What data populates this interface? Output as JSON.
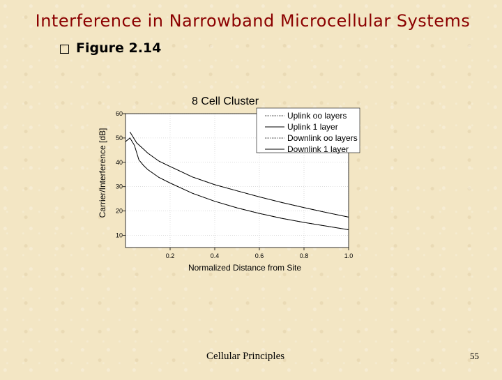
{
  "slide": {
    "title": "Interference in Narrowband Microcellular Systems",
    "bullet": "Figure 2.14",
    "footer": "Cellular Principles",
    "page_number": "55"
  },
  "chart_data": {
    "type": "line",
    "title": "8 Cell Cluster",
    "xlabel": "Normalized Distance from Site",
    "ylabel": "Carrier/Interference [dB]",
    "xlim": [
      0,
      1.0
    ],
    "ylim": [
      5,
      60
    ],
    "xticks": [
      "0.2",
      "0.4",
      "0.6",
      "0.8",
      "1.0"
    ],
    "xtick_values": [
      0.2,
      0.4,
      0.6,
      0.8,
      1.0
    ],
    "yticks": [
      "10",
      "20",
      "30",
      "40",
      "50",
      "60"
    ],
    "ytick_values": [
      10,
      20,
      30,
      40,
      50,
      60
    ],
    "legend_position": "top-right",
    "series": [
      {
        "name": "Uplink oo layers",
        "style": "dotted",
        "x": [
          0.02,
          0.05,
          0.08,
          0.1,
          0.15,
          0.2,
          0.3,
          0.4,
          0.5,
          0.6,
          0.7,
          0.8,
          0.9,
          1.0
        ],
        "y": [
          52.5,
          48.0,
          45.5,
          43.8,
          40.5,
          38.3,
          34.0,
          30.8,
          28.3,
          25.8,
          23.5,
          21.4,
          19.4,
          17.5
        ]
      },
      {
        "name": "Uplink 1 layer",
        "style": "solid",
        "x": [
          0.02,
          0.05,
          0.08,
          0.1,
          0.15,
          0.2,
          0.3,
          0.4,
          0.5,
          0.6,
          0.7,
          0.8,
          0.9,
          1.0
        ],
        "y": [
          52.5,
          48.0,
          45.5,
          43.8,
          40.5,
          38.3,
          34.0,
          30.8,
          28.3,
          25.8,
          23.5,
          21.4,
          19.4,
          17.5
        ]
      },
      {
        "name": "Downlink oo layers",
        "style": "dotted",
        "x": [
          0.0,
          0.02,
          0.04,
          0.06,
          0.08,
          0.1,
          0.15,
          0.2,
          0.3,
          0.4,
          0.5,
          0.6,
          0.7,
          0.8,
          0.9,
          1.0
        ],
        "y": [
          48.5,
          50.0,
          47.0,
          41.0,
          38.8,
          37.0,
          33.8,
          31.5,
          27.3,
          24.0,
          21.3,
          19.0,
          17.0,
          15.3,
          13.8,
          12.3
        ]
      },
      {
        "name": "Downlink 1 layer",
        "style": "solid",
        "x": [
          0.0,
          0.02,
          0.04,
          0.06,
          0.08,
          0.1,
          0.15,
          0.2,
          0.3,
          0.4,
          0.5,
          0.6,
          0.7,
          0.8,
          0.9,
          1.0
        ],
        "y": [
          48.5,
          50.0,
          47.0,
          41.0,
          38.8,
          37.0,
          33.8,
          31.5,
          27.3,
          24.0,
          21.3,
          19.0,
          17.0,
          15.3,
          13.8,
          12.3
        ]
      }
    ]
  }
}
